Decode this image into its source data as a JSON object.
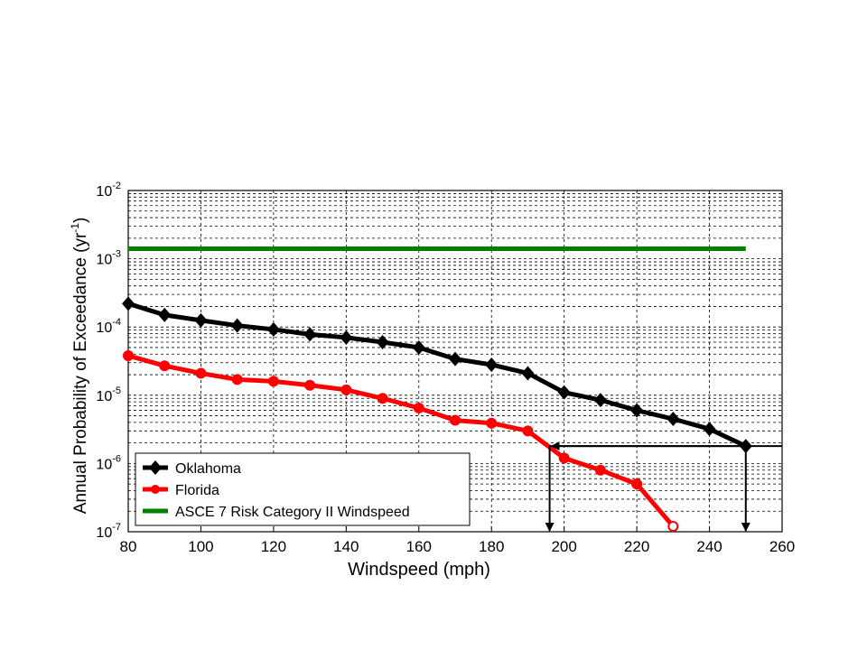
{
  "chart_data": {
    "type": "line",
    "title": "",
    "xlabel": "Windspeed (mph)",
    "ylabel_main": "Annual Probability of Exceedance (yr",
    "ylabel_sup": "-1",
    "ylabel_end": ")",
    "xlim": [
      80,
      260
    ],
    "ylim": [
      1e-07,
      0.01
    ],
    "yscale": "log",
    "grid": true,
    "legend_position": "bottom-left",
    "x_ticks": [
      80,
      100,
      120,
      140,
      160,
      180,
      200,
      220,
      240,
      260
    ],
    "y_ticks": [
      {
        "value": 1e-07,
        "base": "10",
        "exp": "-7"
      },
      {
        "value": 1e-06,
        "base": "10",
        "exp": "-6"
      },
      {
        "value": 1e-05,
        "base": "10",
        "exp": "-5"
      },
      {
        "value": 0.0001,
        "base": "10",
        "exp": "-4"
      },
      {
        "value": 0.001,
        "base": "10",
        "exp": "-3"
      },
      {
        "value": 0.01,
        "base": "10",
        "exp": "-2"
      }
    ],
    "series": [
      {
        "name": "Oklahoma",
        "color": "#000000",
        "marker": "diamond",
        "x": [
          80,
          90,
          100,
          110,
          120,
          130,
          140,
          150,
          160,
          170,
          180,
          190,
          200,
          210,
          220,
          230,
          240,
          250
        ],
        "y": [
          0.00022,
          0.00015,
          0.000125,
          0.000105,
          9.2e-05,
          7.8e-05,
          7e-05,
          6e-05,
          5e-05,
          3.4e-05,
          2.8e-05,
          2.1e-05,
          1.1e-05,
          8.5e-06,
          6e-06,
          4.5e-06,
          3.2e-06,
          1.8e-06
        ]
      },
      {
        "name": "Florida",
        "color": "#ff0000",
        "marker": "circle",
        "x": [
          80,
          90,
          100,
          110,
          120,
          130,
          140,
          150,
          160,
          170,
          180,
          190,
          200,
          210,
          220,
          230
        ],
        "y": [
          3.8e-05,
          2.7e-05,
          2.1e-05,
          1.7e-05,
          1.6e-05,
          1.4e-05,
          1.2e-05,
          9e-06,
          6.5e-06,
          4.3e-06,
          3.9e-06,
          3e-06,
          1.2e-06,
          8e-07,
          5e-07,
          1.2e-07
        ]
      },
      {
        "name": "ASCE 7 Risk Category II Windspeed",
        "color": "#008000",
        "marker": "none",
        "x": [
          80,
          250
        ],
        "y": [
          0.0014,
          0.0014
        ]
      }
    ],
    "annotations": {
      "horizontal_line": {
        "y": 1.8e-06,
        "x_from": 196,
        "x_to": 260
      },
      "arrow_left": {
        "y": 1.8e-06,
        "x_from": 250,
        "x_to": 196
      },
      "arrows_down": [
        {
          "x": 196,
          "y_from": 1.8e-06,
          "y_to": 1e-07
        },
        {
          "x": 250,
          "y_from": 1.8e-06,
          "y_to": 1e-07
        }
      ]
    }
  }
}
